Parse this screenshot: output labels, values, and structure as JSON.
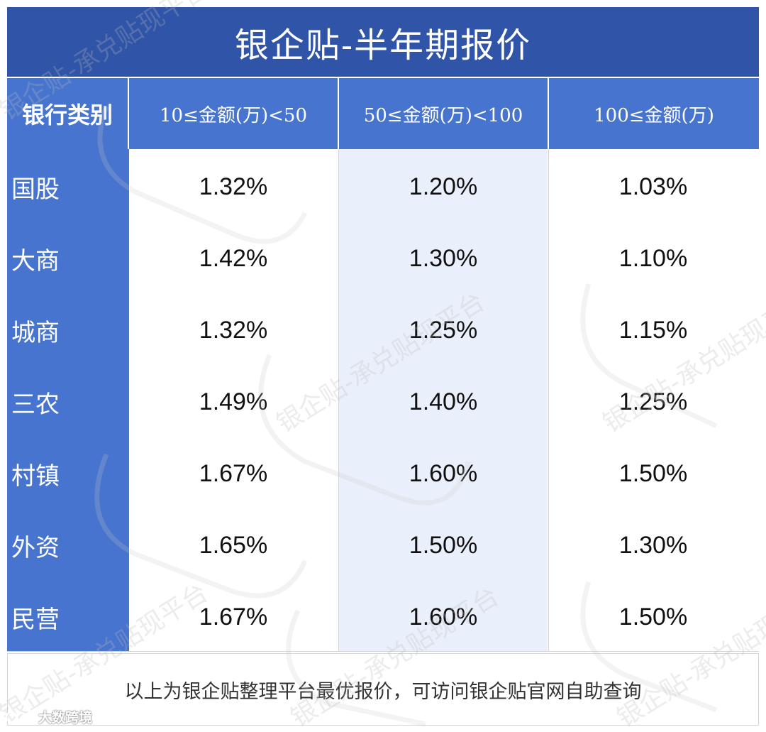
{
  "title": "银企贴-半年期报价",
  "header": {
    "bank_type": "银行类别",
    "columns": [
      "10≤金额(万)<50",
      "50≤金额(万)<100",
      "100≤金额(万)"
    ]
  },
  "rows": [
    {
      "bank": "国股",
      "rates": [
        "1.32%",
        "1.20%",
        "1.03%"
      ]
    },
    {
      "bank": "大商",
      "rates": [
        "1.42%",
        "1.30%",
        "1.10%"
      ]
    },
    {
      "bank": "城商",
      "rates": [
        "1.32%",
        "1.25%",
        "1.15%"
      ]
    },
    {
      "bank": "三农",
      "rates": [
        "1.49%",
        "1.40%",
        "1.25%"
      ]
    },
    {
      "bank": "村镇",
      "rates": [
        "1.67%",
        "1.60%",
        "1.50%"
      ]
    },
    {
      "bank": "外资",
      "rates": [
        "1.65%",
        "1.50%",
        "1.30%"
      ]
    },
    {
      "bank": "民营",
      "rates": [
        "1.67%",
        "1.60%",
        "1.50%"
      ]
    }
  ],
  "footer": "以上为银企贴整理平台最优报价，可访问银企贴官网自助查询",
  "watermark": "银企贴-承兑贴现平台",
  "logo": {
    "icon": "dashu-logo-icon",
    "text": "大数跨境"
  },
  "colors": {
    "title_bg": "#2f54a8",
    "header_bg": "#4774ce",
    "mid_column_bg": "#eaf0fb"
  }
}
